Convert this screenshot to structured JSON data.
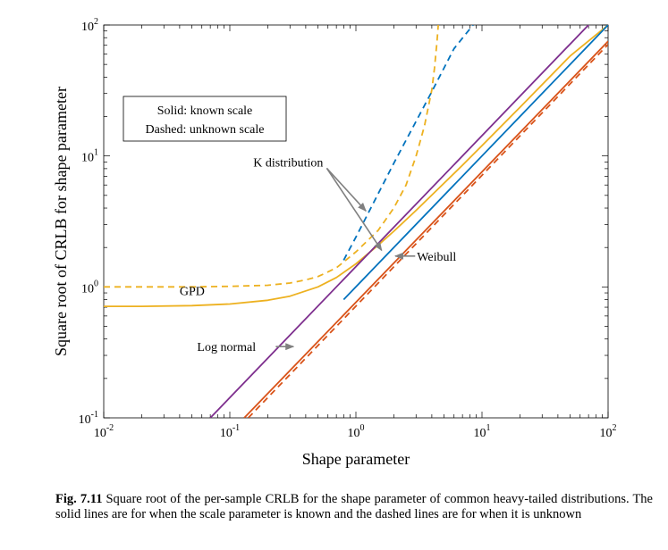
{
  "chart_data": {
    "type": "line",
    "xscale": "log",
    "yscale": "log",
    "xlim": [
      0.01,
      100
    ],
    "ylim": [
      0.1,
      100
    ],
    "xlabel": "Shape parameter",
    "ylabel": "Square root of CRLB for shape parameter",
    "xticks": [
      0.01,
      0.1,
      1,
      10,
      100
    ],
    "yticks": [
      0.1,
      1,
      10,
      100
    ],
    "xticklabels": [
      {
        "base": "10",
        "exp": "-2"
      },
      {
        "base": "10",
        "exp": "-1"
      },
      {
        "base": "10",
        "exp": "0"
      },
      {
        "base": "10",
        "exp": "1"
      },
      {
        "base": "10",
        "exp": "2"
      }
    ],
    "yticklabels": [
      {
        "base": "10",
        "exp": "-1"
      },
      {
        "base": "10",
        "exp": "0"
      },
      {
        "base": "10",
        "exp": "1"
      },
      {
        "base": "10",
        "exp": "2"
      }
    ],
    "grid": false,
    "legend_box": {
      "line1": "Solid: known scale",
      "line2": "Dashed: unknown scale",
      "position": "top-left"
    },
    "colors": {
      "gpd": "#EDB120",
      "k_distribution": "#0072BD",
      "weibull": "#D95319",
      "log_normal": "#7E2F8E",
      "annotation": "#808080"
    },
    "series": [
      {
        "name": "GPD",
        "style": "solid",
        "color": "#EDB120",
        "x": [
          0.01,
          0.02,
          0.05,
          0.1,
          0.2,
          0.3,
          0.5,
          0.7,
          1,
          1.5,
          2,
          3,
          5,
          7,
          10,
          20,
          50,
          100
        ],
        "y": [
          0.71,
          0.71,
          0.72,
          0.74,
          0.79,
          0.85,
          1.0,
          1.18,
          1.5,
          2.08,
          2.66,
          3.84,
          6.2,
          8.5,
          12,
          23.5,
          58,
          100
        ]
      },
      {
        "name": "GPD",
        "style": "dashed",
        "color": "#EDB120",
        "x": [
          0.01,
          0.05,
          0.1,
          0.2,
          0.3,
          0.4,
          0.5,
          0.6,
          0.7,
          0.8,
          1,
          1.5,
          2,
          2.5,
          3,
          3.5,
          4,
          4.2,
          4.4,
          4.5
        ],
        "y": [
          1.0,
          1.0,
          1.01,
          1.03,
          1.07,
          1.13,
          1.2,
          1.3,
          1.4,
          1.55,
          1.85,
          2.7,
          4.0,
          6.0,
          10.0,
          17.0,
          32.0,
          47.0,
          75.0,
          100.0
        ]
      },
      {
        "name": "K distribution",
        "style": "solid",
        "color": "#0072BD",
        "x": [
          0.8,
          100
        ],
        "y": [
          0.8,
          100
        ]
      },
      {
        "name": "K distribution",
        "style": "dashed",
        "color": "#0072BD",
        "x": [
          0.8,
          1,
          2,
          4,
          6,
          8.5
        ],
        "y": [
          1.6,
          2.4,
          8.8,
          31,
          66,
          100
        ]
      },
      {
        "name": "Weibull",
        "style": "solid",
        "color": "#D95319",
        "x": [
          0.13,
          100
        ],
        "y": [
          0.1,
          75
        ]
      },
      {
        "name": "Weibull",
        "style": "dashed",
        "color": "#D95319",
        "x": [
          0.14,
          100
        ],
        "y": [
          0.1,
          71
        ]
      },
      {
        "name": "Log normal",
        "style": "solid",
        "color": "#7E2F8E",
        "x": [
          0.07,
          100
        ],
        "y": [
          0.1,
          143
        ]
      }
    ],
    "annotations": [
      {
        "text": "GPD",
        "label_at": [
          0.04,
          0.79
        ],
        "arrow": false
      },
      {
        "text": "K distribution",
        "label_at": [
          0.55,
          9.0
        ],
        "arrow": true,
        "targets": [
          [
            1.2,
            3.8
          ],
          [
            1.6,
            1.9
          ]
        ]
      },
      {
        "text": "Weibull",
        "label_at": [
          3.05,
          1.72
        ],
        "arrow": true,
        "targets": [
          [
            2.05,
            1.72
          ]
        ]
      },
      {
        "text": "Log normal",
        "label_at": [
          0.055,
          0.35
        ],
        "arrow": true,
        "targets": [
          [
            0.32,
            0.35
          ]
        ]
      }
    ]
  },
  "caption": {
    "label": "Fig. 7.11",
    "text": "Square root of the per-sample CRLB for the shape parameter of common heavy-tailed distributions. The solid lines are for when the scale parameter is known and the dashed lines are for when it is unknown"
  }
}
